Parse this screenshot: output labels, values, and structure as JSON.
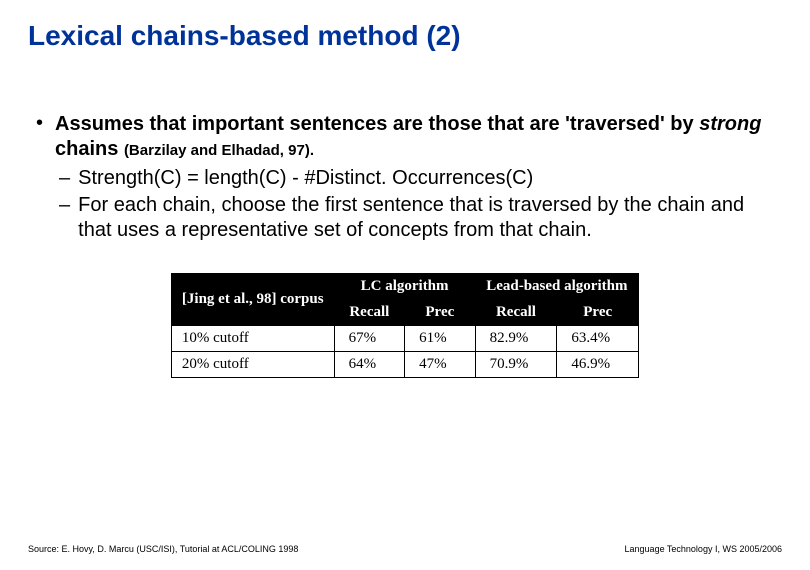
{
  "title": "Lexical chains-based method (2)",
  "bullet": {
    "lead": "Assumes that important sentences are those that are 'traversed' by ",
    "strong": "strong",
    "after_strong": " chains ",
    "cite": "(Barzilay and Elhadad, 97).",
    "subs": [
      "Strength(C) = length(C) - #Distinct. Occurrences(C)",
      "For each chain, choose the first sentence that is traversed by the chain and that uses a representative set of concepts from that chain."
    ]
  },
  "table": {
    "headers": {
      "corpus": "[Jing et al., 98] corpus",
      "lc": "LC algorithm",
      "lead": "Lead-based algorithm",
      "recall": "Recall",
      "prec": "Prec"
    },
    "rows": [
      {
        "label": "10% cutoff",
        "lc_recall": "67%",
        "lc_prec": "61%",
        "lead_recall": "82.9%",
        "lead_prec": "63.4%"
      },
      {
        "label": "20% cutoff",
        "lc_recall": "64%",
        "lc_prec": "47%",
        "lead_recall": "70.9%",
        "lead_prec": "46.9%"
      }
    ]
  },
  "footer": {
    "left": "Source: E. Hovy, D. Marcu (USC/ISI), Tutorial at ACL/COLING 1998",
    "right": "Language Technology I, WS 2005/2006"
  }
}
